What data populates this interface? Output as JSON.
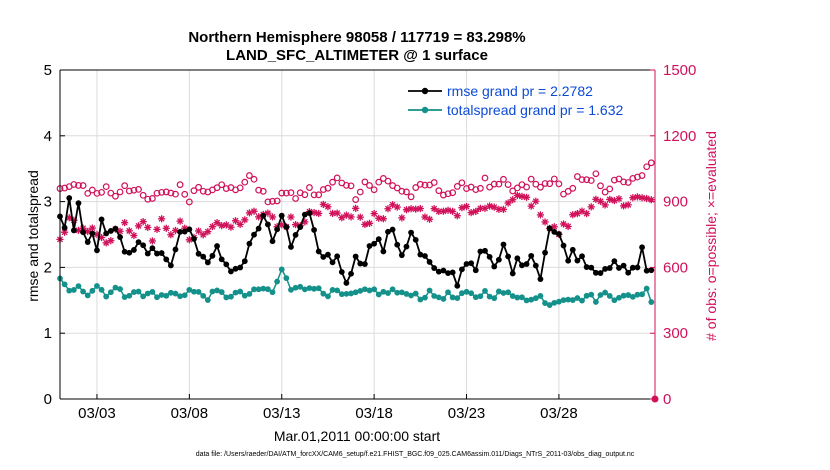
{
  "chart_data": {
    "type": "line",
    "title_line1": "Northern Hemisphere 98058 / 117719 = 83.298%",
    "title_line2": "LAND_SFC_ALTIMETER @ 1 surface",
    "xlabel": "Mar.01,2011 00:00:00 start",
    "ylabel": "rmse and totalspread",
    "ylabel_right": "# of obs: o=possible; ×=evaluated",
    "x_unit": "days since Mar.01,2011 00:00:00",
    "xlim": [
      1.0,
      33.2
    ],
    "ylim": [
      0,
      5
    ],
    "ylim_right": [
      0,
      1500
    ],
    "yticks": [
      "0",
      "1",
      "2",
      "3",
      "4",
      "5"
    ],
    "yticks_right": [
      "0",
      "300",
      "600",
      "900",
      "1200",
      "1500"
    ],
    "xticks": [
      {
        "x": 3,
        "label": "03/03"
      },
      {
        "x": 8,
        "label": "03/08"
      },
      {
        "x": 13,
        "label": "03/13"
      },
      {
        "x": 18,
        "label": "03/18"
      },
      {
        "x": 23,
        "label": "03/23"
      },
      {
        "x": 28,
        "label": "03/28"
      }
    ],
    "grid": true,
    "legend_position": "top-right",
    "colors": {
      "rmse": "#000000",
      "spread": "#13918a",
      "obs": "#d0115a",
      "legend_text": "#0b4ad8"
    },
    "series": [
      {
        "name": "rmse grand pr = 2.2782",
        "axis": "left",
        "key_points": [
          [
            1.0,
            2.72
          ],
          [
            1.25,
            2.7
          ],
          [
            1.5,
            3.1
          ],
          [
            1.75,
            2.6
          ],
          [
            2.0,
            3.0
          ],
          [
            2.25,
            2.55
          ],
          [
            2.5,
            2.4
          ],
          [
            2.75,
            2.6
          ],
          [
            3.0,
            2.35
          ],
          [
            3.25,
            2.65
          ],
          [
            3.5,
            2.6
          ],
          [
            4.0,
            2.5
          ],
          [
            4.5,
            2.3
          ],
          [
            5.0,
            2.32
          ],
          [
            5.5,
            2.28
          ],
          [
            6.0,
            2.2
          ],
          [
            6.5,
            2.3
          ],
          [
            7.0,
            2.0
          ],
          [
            7.5,
            2.55
          ],
          [
            8.0,
            2.55
          ],
          [
            8.5,
            2.3
          ],
          [
            9.0,
            2.0
          ],
          [
            9.5,
            2.25
          ],
          [
            10.0,
            2.05
          ],
          [
            10.5,
            1.97
          ],
          [
            11.0,
            2.1
          ],
          [
            11.5,
            2.5
          ],
          [
            12.0,
            2.72
          ],
          [
            12.5,
            2.4
          ],
          [
            13.0,
            2.8
          ],
          [
            13.5,
            2.3
          ],
          [
            14.0,
            2.52
          ],
          [
            14.5,
            2.9
          ],
          [
            15.0,
            2.2
          ],
          [
            15.5,
            2.2
          ],
          [
            16.0,
            2.1
          ],
          [
            16.5,
            1.85
          ],
          [
            17.0,
            2.1
          ],
          [
            17.5,
            2.15
          ],
          [
            18.0,
            2.4
          ],
          [
            18.5,
            2.3
          ],
          [
            19.0,
            2.6
          ],
          [
            19.5,
            2.2
          ],
          [
            20.0,
            2.55
          ],
          [
            20.5,
            2.2
          ],
          [
            21.0,
            2.05
          ],
          [
            21.5,
            1.85
          ],
          [
            22.0,
            1.95
          ],
          [
            22.5,
            1.8
          ],
          [
            23.0,
            2.1
          ],
          [
            23.5,
            2.05
          ],
          [
            24.0,
            2.25
          ],
          [
            24.5,
            1.95
          ],
          [
            25.0,
            2.3
          ],
          [
            25.5,
            2.0
          ],
          [
            26.0,
            2.1
          ],
          [
            26.5,
            2.2
          ],
          [
            27.0,
            1.9
          ],
          [
            27.5,
            2.6
          ],
          [
            28.0,
            2.45
          ],
          [
            28.5,
            2.2
          ],
          [
            29.0,
            2.2
          ],
          [
            29.5,
            2.1
          ],
          [
            30.0,
            1.95
          ],
          [
            30.5,
            2.05
          ],
          [
            31.0,
            2.0
          ],
          [
            31.5,
            1.95
          ],
          [
            32.0,
            1.92
          ],
          [
            32.5,
            2.25
          ],
          [
            32.75,
            1.96
          ],
          [
            33.0,
            1.97
          ]
        ]
      },
      {
        "name": "totalspread grand pr = 1.632",
        "axis": "left",
        "key_points": [
          [
            1.0,
            1.8
          ],
          [
            1.5,
            1.62
          ],
          [
            2.0,
            1.75
          ],
          [
            2.5,
            1.6
          ],
          [
            3.0,
            1.72
          ],
          [
            3.5,
            1.6
          ],
          [
            4.0,
            1.68
          ],
          [
            4.5,
            1.58
          ],
          [
            5.0,
            1.65
          ],
          [
            5.5,
            1.56
          ],
          [
            6.0,
            1.62
          ],
          [
            6.5,
            1.55
          ],
          [
            7.0,
            1.6
          ],
          [
            7.5,
            1.58
          ],
          [
            8.0,
            1.65
          ],
          [
            8.5,
            1.6
          ],
          [
            9.0,
            1.55
          ],
          [
            9.5,
            1.62
          ],
          [
            10.0,
            1.57
          ],
          [
            10.5,
            1.6
          ],
          [
            11.0,
            1.58
          ],
          [
            11.5,
            1.62
          ],
          [
            12.0,
            1.68
          ],
          [
            12.5,
            1.62
          ],
          [
            13.0,
            1.95
          ],
          [
            13.5,
            1.68
          ],
          [
            14.0,
            1.75
          ],
          [
            14.5,
            1.65
          ],
          [
            15.0,
            1.7
          ],
          [
            15.5,
            1.6
          ],
          [
            16.0,
            1.62
          ],
          [
            16.5,
            1.55
          ],
          [
            17.0,
            1.6
          ],
          [
            17.5,
            1.62
          ],
          [
            18.0,
            1.65
          ],
          [
            18.5,
            1.6
          ],
          [
            19.0,
            1.65
          ],
          [
            19.5,
            1.58
          ],
          [
            20.0,
            1.62
          ],
          [
            20.5,
            1.55
          ],
          [
            21.0,
            1.6
          ],
          [
            21.5,
            1.55
          ],
          [
            22.0,
            1.58
          ],
          [
            22.5,
            1.52
          ],
          [
            23.0,
            1.6
          ],
          [
            23.5,
            1.56
          ],
          [
            24.0,
            1.62
          ],
          [
            24.5,
            1.58
          ],
          [
            25.0,
            1.62
          ],
          [
            25.5,
            1.55
          ],
          [
            26.0,
            1.58
          ],
          [
            26.5,
            1.5
          ],
          [
            27.0,
            1.55
          ],
          [
            27.5,
            1.45
          ],
          [
            28.0,
            1.52
          ],
          [
            28.5,
            1.55
          ],
          [
            29.0,
            1.5
          ],
          [
            29.5,
            1.57
          ],
          [
            30.0,
            1.52
          ],
          [
            30.5,
            1.6
          ],
          [
            31.0,
            1.55
          ],
          [
            31.5,
            1.6
          ],
          [
            32.0,
            1.52
          ],
          [
            32.5,
            1.62
          ],
          [
            32.75,
            1.68
          ],
          [
            33.0,
            1.5
          ]
        ]
      },
      {
        "name": "possible",
        "axis": "right",
        "marker": "circle",
        "key_points": [
          [
            1.0,
            960
          ],
          [
            1.5,
            950
          ],
          [
            2.0,
            990
          ],
          [
            2.5,
            950
          ],
          [
            3.0,
            940
          ],
          [
            3.5,
            960
          ],
          [
            4.0,
            930
          ],
          [
            4.5,
            980
          ],
          [
            5.0,
            950
          ],
          [
            5.5,
            920
          ],
          [
            6.0,
            900
          ],
          [
            6.5,
            950
          ],
          [
            7.0,
            940
          ],
          [
            7.5,
            960
          ],
          [
            8.0,
            920
          ],
          [
            8.5,
            970
          ],
          [
            9.0,
            960
          ],
          [
            9.5,
            980
          ],
          [
            10.0,
            950
          ],
          [
            10.5,
            960
          ],
          [
            11.0,
            990
          ],
          [
            11.5,
            1010
          ],
          [
            12.0,
            930
          ],
          [
            12.5,
            880
          ],
          [
            13.0,
            950
          ],
          [
            13.5,
            920
          ],
          [
            14.0,
            930
          ],
          [
            14.5,
            950
          ],
          [
            15.0,
            930
          ],
          [
            15.5,
            960
          ],
          [
            16.0,
            1000
          ],
          [
            16.5,
            990
          ],
          [
            17.0,
            930
          ],
          [
            17.5,
            990
          ],
          [
            18.0,
            960
          ],
          [
            18.5,
            1000
          ],
          [
            19.0,
            980
          ],
          [
            19.5,
            950
          ],
          [
            20.0,
            930
          ],
          [
            20.5,
            960
          ],
          [
            21.0,
            980
          ],
          [
            21.5,
            960
          ],
          [
            22.0,
            940
          ],
          [
            22.5,
            950
          ],
          [
            23.0,
            980
          ],
          [
            23.5,
            960
          ],
          [
            24.0,
            990
          ],
          [
            24.5,
            960
          ],
          [
            25.0,
            980
          ],
          [
            25.5,
            950
          ],
          [
            26.0,
            960
          ],
          [
            26.5,
            990
          ],
          [
            27.0,
            960
          ],
          [
            27.5,
            1000
          ],
          [
            28.0,
            970
          ],
          [
            28.5,
            940
          ],
          [
            29.0,
            1000
          ],
          [
            29.5,
            980
          ],
          [
            30.0,
            1010
          ],
          [
            30.5,
            960
          ],
          [
            31.0,
            980
          ],
          [
            31.5,
            1000
          ],
          [
            32.0,
            990
          ],
          [
            32.5,
            1010
          ],
          [
            33.0,
            1090
          ]
        ]
      },
      {
        "name": "evaluated",
        "axis": "right",
        "marker": "asterisk",
        "key_points": [
          [
            1.0,
            720
          ],
          [
            1.5,
            820
          ],
          [
            2.0,
            760
          ],
          [
            2.5,
            780
          ],
          [
            3.0,
            740
          ],
          [
            3.5,
            700
          ],
          [
            4.0,
            760
          ],
          [
            4.5,
            800
          ],
          [
            5.0,
            760
          ],
          [
            5.5,
            790
          ],
          [
            6.0,
            740
          ],
          [
            6.5,
            810
          ],
          [
            7.0,
            760
          ],
          [
            7.5,
            790
          ],
          [
            8.0,
            730
          ],
          [
            8.5,
            750
          ],
          [
            9.0,
            780
          ],
          [
            9.5,
            810
          ],
          [
            10.0,
            770
          ],
          [
            10.5,
            800
          ],
          [
            11.0,
            820
          ],
          [
            11.5,
            840
          ],
          [
            12.0,
            840
          ],
          [
            12.5,
            820
          ],
          [
            13.0,
            790
          ],
          [
            13.5,
            820
          ],
          [
            14.0,
            780
          ],
          [
            14.5,
            860
          ],
          [
            15.0,
            850
          ],
          [
            15.5,
            880
          ],
          [
            16.0,
            860
          ],
          [
            16.5,
            830
          ],
          [
            17.0,
            880
          ],
          [
            17.5,
            800
          ],
          [
            18.0,
            830
          ],
          [
            18.5,
            820
          ],
          [
            19.0,
            880
          ],
          [
            19.5,
            850
          ],
          [
            20.0,
            870
          ],
          [
            20.5,
            860
          ],
          [
            21.0,
            820
          ],
          [
            21.5,
            870
          ],
          [
            22.0,
            840
          ],
          [
            22.5,
            860
          ],
          [
            23.0,
            870
          ],
          [
            23.5,
            840
          ],
          [
            24.0,
            880
          ],
          [
            24.5,
            850
          ],
          [
            25.0,
            880
          ],
          [
            25.5,
            900
          ],
          [
            26.0,
            920
          ],
          [
            26.5,
            900
          ],
          [
            27.0,
            860
          ],
          [
            27.5,
            780
          ],
          [
            28.0,
            760
          ],
          [
            28.5,
            800
          ],
          [
            29.0,
            850
          ],
          [
            29.5,
            870
          ],
          [
            30.0,
            900
          ],
          [
            30.5,
            870
          ],
          [
            31.0,
            900
          ],
          [
            31.5,
            890
          ],
          [
            32.0,
            930
          ],
          [
            32.5,
            910
          ],
          [
            33.0,
            900
          ]
        ]
      }
    ],
    "footer": "data file: /Users/raeder/DAI/ATM_forcXX/CAM6_setup/f.e21.FHIST_BGC.f09_025.CAM6assim.011/Diags_NTrS_2011-03/obs_diag_output.nc"
  }
}
